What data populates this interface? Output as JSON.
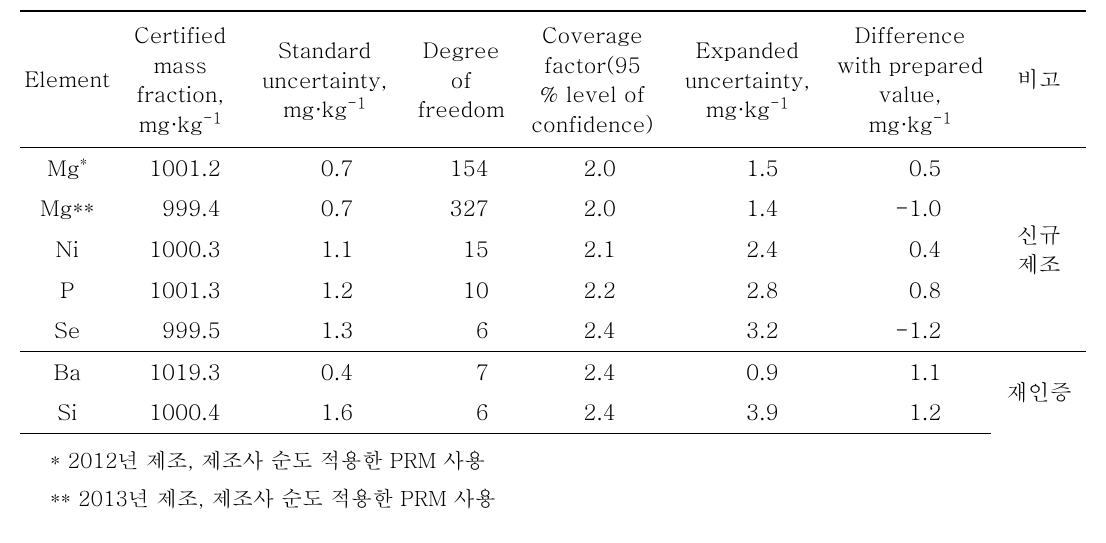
{
  "headers": {
    "element": "Element",
    "certified_l1": "Certified",
    "certified_l2": "mass",
    "certified_l3": "fraction,",
    "std_l1": "Standard",
    "std_l2": "uncertainty,",
    "dof_l1": "Degree",
    "dof_l2": "of",
    "dof_l3": "freedom",
    "cov_l1": "Coverage",
    "cov_l2": "factor(95",
    "cov_l3": "% level of",
    "cov_l4": "confidence)",
    "exp_l1": "Expanded",
    "exp_l2": "uncertainty,",
    "diff_l1": "Difference",
    "diff_l2": "with prepared",
    "diff_l3": "value,",
    "remark": "비고",
    "unit_mgkg": "mg·kg",
    "sup_neg1": "-1"
  },
  "rows": [
    {
      "el_plain": "Mg",
      "el_sup": "*",
      "cert": "1001.2",
      "std": "0.7",
      "dof": "154",
      "cov": "2.0",
      "exp": "1.5",
      "diff": "0.5"
    },
    {
      "el_plain": "Mg**",
      "el_sup": "",
      "cert": "999.4",
      "std": "0.7",
      "dof": "327",
      "cov": "2.0",
      "exp": "1.4",
      "diff": "-1.0"
    },
    {
      "el_plain": "Ni",
      "el_sup": "",
      "cert": "1000.3",
      "std": "1.1",
      "dof": "15",
      "cov": "2.1",
      "exp": "2.4",
      "diff": "0.4"
    },
    {
      "el_plain": "P",
      "el_sup": "",
      "cert": "1001.3",
      "std": "1.2",
      "dof": "10",
      "cov": "2.2",
      "exp": "2.8",
      "diff": "0.8"
    },
    {
      "el_plain": "Se",
      "el_sup": "",
      "cert": "999.5",
      "std": "1.3",
      "dof": "6",
      "cov": "2.4",
      "exp": "3.2",
      "diff": "-1.2"
    },
    {
      "el_plain": "Ba",
      "el_sup": "",
      "cert": "1019.3",
      "std": "0.4",
      "dof": "7",
      "cov": "2.4",
      "exp": "0.9",
      "diff": "1.1"
    },
    {
      "el_plain": "Si",
      "el_sup": "",
      "cert": "1000.4",
      "std": "1.6",
      "dof": "6",
      "cov": "2.4",
      "exp": "3.9",
      "diff": "1.2"
    }
  ],
  "remarks": {
    "group1_l1": "신규",
    "group1_l2": "제조",
    "group2": "재인증"
  },
  "footnotes": {
    "f1": "* 2012년 제조, 제조사 순도 적용한 PRM 사용",
    "f2": "** 2013년 제조, 제조사 순도 적용한 PRM 사용"
  }
}
